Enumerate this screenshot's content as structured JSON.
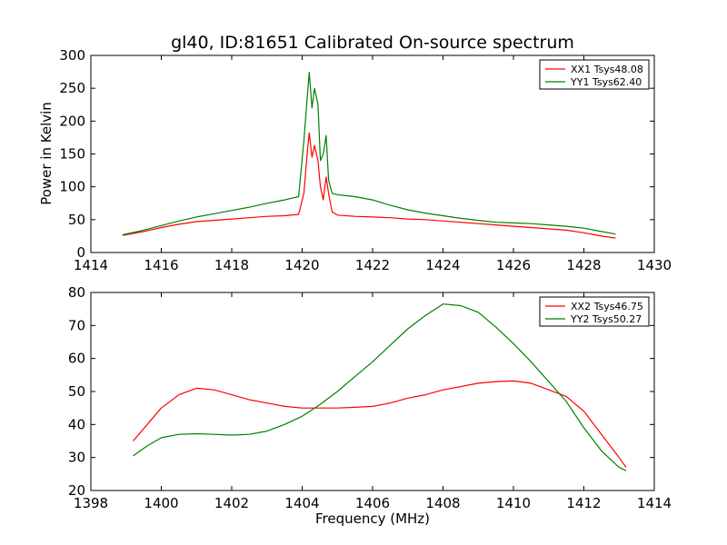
{
  "chart_data": [
    {
      "type": "line",
      "title": "gl40, ID:81651 Calibrated On-source spectrum",
      "xlabel": "",
      "ylabel": "Power in Kelvin",
      "xlim": [
        1414,
        1430
      ],
      "ylim": [
        0,
        300
      ],
      "xticks": [
        1414,
        1416,
        1418,
        1420,
        1422,
        1424,
        1426,
        1428,
        1430
      ],
      "yticks": [
        0,
        50,
        100,
        150,
        200,
        250,
        300
      ],
      "grid": false,
      "legend_position": "top-right",
      "series": [
        {
          "name": "XX1 Tsys48.08",
          "color": "#ff0000",
          "x": [
            1414.9,
            1415.5,
            1416,
            1416.5,
            1417,
            1417.5,
            1418,
            1418.5,
            1419,
            1419.5,
            1419.9,
            1420.05,
            1420.15,
            1420.2,
            1420.28,
            1420.35,
            1420.45,
            1420.52,
            1420.6,
            1420.68,
            1420.75,
            1420.85,
            1421,
            1421.5,
            1422,
            1422.5,
            1423,
            1423.5,
            1424,
            1424.5,
            1425,
            1425.5,
            1426,
            1426.5,
            1427,
            1427.5,
            1428,
            1428.5,
            1428.9
          ],
          "y": [
            26,
            32,
            38,
            43,
            47,
            49,
            51,
            53,
            55,
            56,
            58,
            90,
            155,
            182,
            145,
            163,
            140,
            100,
            80,
            115,
            90,
            62,
            57,
            55,
            54,
            53,
            51,
            50,
            48,
            46,
            44,
            42,
            40,
            38,
            36,
            34,
            30,
            25,
            22
          ]
        },
        {
          "name": "YY1 Tsys62.40",
          "color": "#008000",
          "x": [
            1414.9,
            1415.5,
            1416,
            1416.5,
            1417,
            1417.5,
            1418,
            1418.5,
            1419,
            1419.5,
            1419.9,
            1420.05,
            1420.15,
            1420.2,
            1420.28,
            1420.35,
            1420.45,
            1420.52,
            1420.6,
            1420.68,
            1420.75,
            1420.85,
            1421,
            1421.5,
            1422,
            1422.5,
            1423,
            1423.5,
            1424,
            1424.5,
            1425,
            1425.5,
            1426,
            1426.5,
            1427,
            1427.5,
            1428,
            1428.5,
            1428.9
          ],
          "y": [
            27,
            34,
            41,
            48,
            54,
            59,
            64,
            69,
            75,
            80,
            85,
            170,
            240,
            274,
            220,
            250,
            225,
            140,
            150,
            178,
            110,
            90,
            88,
            85,
            80,
            72,
            65,
            60,
            56,
            52,
            49,
            46,
            45,
            44,
            42,
            40,
            37,
            32,
            28
          ]
        }
      ]
    },
    {
      "type": "line",
      "title": "",
      "xlabel": "Frequency (MHz)",
      "ylabel": "",
      "xlim": [
        1398,
        1414
      ],
      "ylim": [
        20,
        80
      ],
      "xticks": [
        1398,
        1400,
        1402,
        1404,
        1406,
        1408,
        1410,
        1412,
        1414
      ],
      "yticks": [
        20,
        30,
        40,
        50,
        60,
        70,
        80
      ],
      "grid": false,
      "legend_position": "top-right",
      "series": [
        {
          "name": "XX2 Tsys46.75",
          "color": "#ff0000",
          "x": [
            1399.2,
            1399.6,
            1400,
            1400.5,
            1401,
            1401.5,
            1402,
            1402.5,
            1403,
            1403.5,
            1404,
            1404.5,
            1405,
            1405.5,
            1406,
            1406.5,
            1407,
            1407.5,
            1408,
            1408.5,
            1409,
            1409.5,
            1410,
            1410.5,
            1411,
            1411.5,
            1412,
            1412.5,
            1413,
            1413.2
          ],
          "y": [
            35,
            40,
            45,
            49,
            51,
            50.5,
            49,
            47.5,
            46.5,
            45.5,
            45,
            45,
            45,
            45.2,
            45.5,
            46.5,
            48,
            49,
            50.5,
            51.5,
            52.5,
            53,
            53.2,
            52.5,
            50.5,
            48.5,
            44,
            37,
            30,
            27
          ]
        },
        {
          "name": "YY2 Tsys50.27",
          "color": "#008000",
          "x": [
            1399.2,
            1399.6,
            1400,
            1400.5,
            1401,
            1401.5,
            1402,
            1402.5,
            1403,
            1403.5,
            1404,
            1404.5,
            1405,
            1405.5,
            1406,
            1406.5,
            1407,
            1407.5,
            1408,
            1408.5,
            1409,
            1409.5,
            1410,
            1410.5,
            1411,
            1411.5,
            1412,
            1412.5,
            1413,
            1413.2
          ],
          "y": [
            30.5,
            33.5,
            36,
            37,
            37.2,
            37,
            36.8,
            37,
            38,
            40,
            42.5,
            46,
            50,
            54.5,
            59,
            64,
            69,
            73,
            76.5,
            76,
            74,
            69.5,
            64.5,
            59,
            53,
            47,
            39,
            32,
            27,
            26
          ]
        }
      ]
    }
  ]
}
